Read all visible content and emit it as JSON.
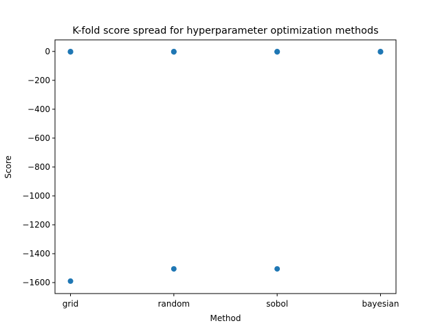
{
  "chart_data": {
    "type": "scatter",
    "title": "K-fold score spread for hyperparameter optimization methods",
    "xlabel": "Method",
    "ylabel": "Score",
    "categories": [
      "grid",
      "random",
      "sobol",
      "bayesian"
    ],
    "ylim": [
      -1676,
      80
    ],
    "yticks": [
      0,
      -200,
      -400,
      -600,
      -800,
      -1000,
      -1200,
      -1400,
      -1600
    ],
    "ytick_labels": [
      "0",
      "−200",
      "−400",
      "−600",
      "−800",
      "−1000",
      "−1200",
      "−1400",
      "−1600"
    ],
    "grid": false,
    "marker_color": "#1f77b4",
    "series": [
      {
        "points": [
          {
            "x": "grid",
            "y": -1
          },
          {
            "x": "grid",
            "y": -2
          },
          {
            "x": "grid",
            "y": -3
          },
          {
            "x": "grid",
            "y": -1590
          },
          {
            "x": "random",
            "y": -1
          },
          {
            "x": "random",
            "y": -2
          },
          {
            "x": "random",
            "y": -3
          },
          {
            "x": "random",
            "y": -1505
          },
          {
            "x": "sobol",
            "y": -1
          },
          {
            "x": "sobol",
            "y": -2
          },
          {
            "x": "sobol",
            "y": -3
          },
          {
            "x": "sobol",
            "y": -1505
          },
          {
            "x": "bayesian",
            "y": -1
          },
          {
            "x": "bayesian",
            "y": -2
          },
          {
            "x": "bayesian",
            "y": -3
          }
        ]
      }
    ]
  }
}
